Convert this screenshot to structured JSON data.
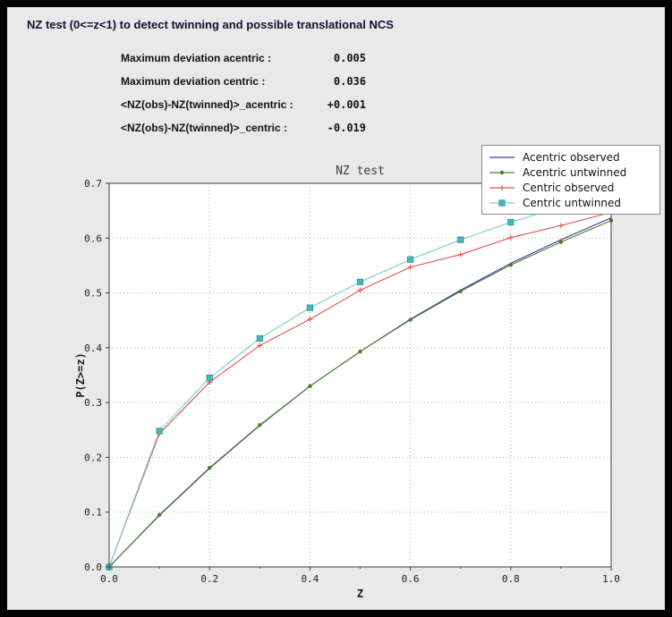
{
  "window": {
    "title": "NZ test (0<=z<1) to detect twinning and possible translational NCS"
  },
  "stats": {
    "rows": [
      {
        "label": "Maximum deviation acentric :",
        "value": "0.005"
      },
      {
        "label": "Maximum deviation centric :",
        "value": "0.036"
      },
      {
        "label": "<NZ(obs)-NZ(twinned)>_acentric :",
        "value": "+0.001"
      },
      {
        "label": "<NZ(obs)-NZ(twinned)>_centric :",
        "value": "-0.019"
      }
    ]
  },
  "chart_data": {
    "type": "line",
    "title": "NZ test",
    "xlabel": "Z",
    "ylabel": "P(Z>=z)",
    "xlim": [
      0.0,
      1.0
    ],
    "ylim": [
      0.0,
      0.7
    ],
    "x_ticks": [
      0.0,
      0.2,
      0.4,
      0.6,
      0.8,
      1.0
    ],
    "x_minor_ticks": [
      0.1,
      0.3,
      0.5,
      0.7,
      0.9
    ],
    "y_ticks": [
      0.0,
      0.1,
      0.2,
      0.3,
      0.4,
      0.5,
      0.6,
      0.7
    ],
    "grid": true,
    "legend_position": "upper right",
    "x": [
      0.0,
      0.1,
      0.2,
      0.3,
      0.4,
      0.5,
      0.6,
      0.7,
      0.8,
      0.9,
      1.0
    ],
    "series": [
      {
        "name": "Acentric observed",
        "color": "#2e3c9e",
        "marker": "none",
        "values": [
          0.0,
          0.094,
          0.18,
          0.258,
          0.33,
          0.393,
          0.452,
          0.505,
          0.554,
          0.597,
          0.637
        ]
      },
      {
        "name": "Acentric untwinned",
        "color": "#4d7d2b",
        "marker": "circle",
        "values": [
          0.0,
          0.095,
          0.181,
          0.259,
          0.33,
          0.393,
          0.451,
          0.503,
          0.551,
          0.593,
          0.632
        ]
      },
      {
        "name": "Centric observed",
        "color": "#e8534a",
        "marker": "plus",
        "values": [
          0.0,
          0.243,
          0.337,
          0.404,
          0.452,
          0.505,
          0.547,
          0.57,
          0.601,
          0.623,
          0.647
        ]
      },
      {
        "name": "Centric untwinned",
        "color": "#6fd0d3",
        "marker": "square",
        "marker_color": "#4cb6ba",
        "marker_edge": "#2f8f94",
        "values": [
          0.0,
          0.248,
          0.345,
          0.417,
          0.473,
          0.52,
          0.561,
          0.597,
          0.629,
          0.657,
          0.683
        ]
      }
    ]
  }
}
